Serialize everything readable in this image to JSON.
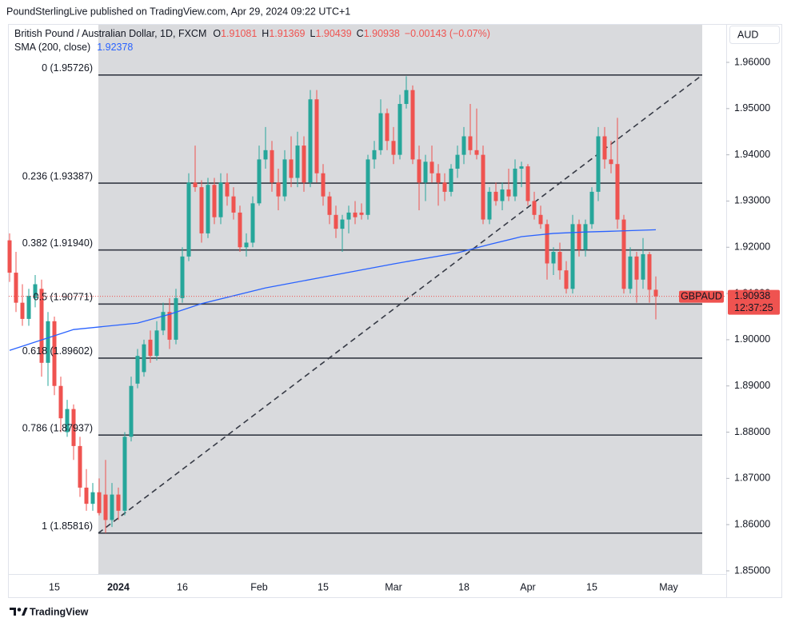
{
  "header": "PoundSterlingLive published on TradingView.com, Apr 29, 2024 09:22 UTC+1",
  "footer": "TradingView",
  "currency_button": "AUD",
  "chart_data": {
    "type": "candlestick",
    "legend": {
      "symbol": "British Pound / Australian Dollar, 1D, FXCM",
      "o": "O",
      "h": "H",
      "l": "L",
      "c": "C",
      "change": "−0.00143 (−0.07%)",
      "sma": "SMA (200, close)"
    },
    "ticker": "GBPAUD",
    "countdown": "12:37:25",
    "up_color": "#26a69a",
    "down_color": "#ef5350",
    "categories": [
      null,
      null,
      null,
      null,
      null,
      null,
      null,
      "15",
      null,
      null,
      null,
      null,
      null,
      null,
      null,
      null,
      null,
      "2024",
      null,
      null,
      null,
      null,
      null,
      null,
      null,
      null,
      null,
      "16",
      null,
      null,
      null,
      null,
      null,
      null,
      null,
      null,
      null,
      null,
      null,
      "Feb",
      null,
      null,
      null,
      null,
      null,
      null,
      null,
      null,
      null,
      "15",
      null,
      null,
      null,
      null,
      null,
      null,
      null,
      null,
      null,
      null,
      "Mar",
      null,
      null,
      null,
      null,
      null,
      null,
      null,
      null,
      null,
      null,
      "18",
      null,
      null,
      null,
      null,
      null,
      null,
      null,
      null,
      null,
      "Apr",
      null,
      null,
      null,
      null,
      null,
      null,
      null,
      null,
      null,
      "15",
      null,
      null,
      null,
      null,
      null,
      null,
      null,
      null,
      null,
      null,
      null,
      "May"
    ],
    "open": [
      1.9215,
      1.9145,
      1.908,
      1.9045,
      1.909,
      1.911,
      1.895,
      1.904,
      1.89,
      1.88,
      1.885,
      1.877,
      1.868,
      1.8645,
      1.867,
      1.8665,
      1.861,
      1.8665,
      1.863,
      1.879,
      1.8905,
      1.893,
      1.9,
      1.8965,
      1.902,
      1.906,
      1.9,
      1.909,
      1.918,
      1.934,
      1.933,
      1.923,
      1.9335,
      1.9265,
      1.934,
      1.931,
      1.9275,
      1.92,
      1.921,
      1.9295,
      1.939,
      1.941,
      1.934,
      1.931,
      1.939,
      1.935,
      1.942,
      1.934,
      1.952,
      1.936,
      1.931,
      1.927,
      1.924,
      1.926,
      1.9275,
      1.9275,
      1.927,
      1.939,
      1.941,
      1.949,
      1.943,
      1.94,
      1.951,
      1.954,
      1.939,
      1.934,
      1.9385,
      1.936,
      1.934,
      1.932,
      1.937,
      1.94,
      1.944,
      1.941,
      1.94,
      1.926,
      1.932,
      1.93,
      1.9325,
      1.931,
      1.937,
      1.9375,
      1.93,
      1.927,
      1.925,
      1.9165,
      1.919,
      1.915,
      1.911,
      1.925,
      1.9195,
      1.925,
      1.932,
      1.944,
      1.939,
      1.938,
      1.926,
      1.911,
      1.918,
      1.913,
      1.9185,
      1.91081,
      null,
      null
    ],
    "high": [
      1.923,
      1.919,
      1.912,
      1.911,
      1.914,
      1.913,
      1.906,
      1.905,
      1.892,
      1.887,
      1.886,
      1.879,
      1.872,
      1.869,
      1.87,
      1.874,
      1.869,
      1.868,
      1.88,
      1.892,
      1.898,
      1.9,
      1.902,
      1.904,
      1.908,
      1.909,
      1.911,
      1.92,
      1.936,
      1.942,
      1.9345,
      1.935,
      1.935,
      1.936,
      1.936,
      1.933,
      1.929,
      1.923,
      1.931,
      1.942,
      1.946,
      1.943,
      1.937,
      1.941,
      1.944,
      1.945,
      1.944,
      1.954,
      1.954,
      1.938,
      1.932,
      1.929,
      1.927,
      1.929,
      1.93,
      1.9295,
      1.94,
      1.943,
      1.952,
      1.95,
      1.946,
      1.953,
      1.957,
      1.955,
      1.942,
      1.94,
      1.942,
      1.938,
      1.936,
      1.938,
      1.942,
      1.946,
      1.951,
      1.95,
      1.942,
      1.933,
      1.934,
      1.934,
      1.937,
      1.939,
      1.9385,
      1.938,
      1.932,
      1.929,
      1.926,
      1.92,
      1.921,
      1.917,
      1.927,
      1.926,
      1.926,
      1.933,
      1.946,
      1.946,
      1.943,
      1.948,
      1.927,
      1.92,
      1.919,
      1.922,
      1.919,
      1.91369,
      null,
      null
    ],
    "low": [
      1.9125,
      1.906,
      1.903,
      1.903,
      1.907,
      1.892,
      1.89,
      1.888,
      1.88,
      1.879,
      1.874,
      1.866,
      1.863,
      1.863,
      1.862,
      1.8582,
      1.8595,
      1.861,
      1.862,
      1.878,
      1.8895,
      1.892,
      1.895,
      1.8955,
      1.901,
      1.898,
      1.899,
      1.908,
      1.917,
      1.932,
      1.921,
      1.922,
      1.925,
      1.925,
      1.929,
      1.926,
      1.919,
      1.918,
      1.92,
      1.929,
      1.937,
      1.932,
      1.928,
      1.93,
      1.933,
      1.933,
      1.932,
      1.933,
      1.934,
      1.929,
      1.925,
      1.922,
      1.919,
      1.923,
      1.925,
      1.926,
      1.926,
      1.937,
      1.94,
      1.941,
      1.938,
      1.939,
      1.95,
      1.938,
      1.928,
      1.93,
      1.934,
      1.929,
      1.93,
      1.931,
      1.935,
      1.938,
      1.94,
      1.939,
      1.925,
      1.925,
      1.929,
      1.928,
      1.93,
      1.93,
      1.933,
      1.929,
      1.926,
      1.924,
      1.913,
      1.914,
      1.913,
      1.91,
      1.91,
      1.918,
      1.918,
      1.924,
      1.93,
      1.937,
      1.936,
      1.924,
      1.91,
      1.91,
      1.908,
      1.911,
      1.908,
      1.90439,
      null,
      null
    ],
    "close": [
      1.9145,
      1.908,
      1.9045,
      1.9095,
      1.912,
      1.895,
      1.904,
      1.89,
      1.883,
      1.885,
      1.877,
      1.868,
      1.8645,
      1.867,
      1.8625,
      1.861,
      1.8665,
      1.863,
      1.879,
      1.89,
      1.8965,
      1.899,
      1.8965,
      1.902,
      1.906,
      1.9,
      1.909,
      1.918,
      1.934,
      1.933,
      1.923,
      1.9335,
      1.9265,
      1.934,
      1.931,
      1.9275,
      1.92,
      1.921,
      1.9295,
      1.939,
      1.941,
      1.934,
      1.931,
      1.939,
      1.935,
      1.942,
      1.934,
      1.952,
      1.936,
      1.931,
      1.927,
      1.924,
      1.926,
      1.9275,
      1.9265,
      1.927,
      1.939,
      1.941,
      1.949,
      1.943,
      1.94,
      1.951,
      1.954,
      1.939,
      1.934,
      1.9385,
      1.936,
      1.934,
      1.932,
      1.937,
      1.94,
      1.944,
      1.941,
      1.94,
      1.926,
      1.932,
      1.93,
      1.9325,
      1.931,
      1.937,
      1.9375,
      1.93,
      1.927,
      1.925,
      1.9165,
      1.919,
      1.915,
      1.911,
      1.925,
      1.9195,
      1.925,
      1.932,
      1.944,
      1.939,
      1.938,
      1.926,
      1.911,
      1.918,
      1.913,
      1.9185,
      1.91081,
      1.90938,
      null,
      null
    ],
    "sma": {
      "name": "SMA (200, close)",
      "color": "#2962ff",
      "x": [
        0,
        10,
        20,
        25,
        30,
        40,
        50,
        60,
        70,
        75,
        80,
        85,
        90,
        95,
        101
      ],
      "values": [
        1.8977,
        1.9022,
        1.9036,
        1.9055,
        1.9078,
        1.9112,
        1.9138,
        1.9164,
        1.9188,
        1.9206,
        1.9223,
        1.923,
        1.9233,
        1.9235,
        1.92378
      ]
    },
    "fib_levels": [
      {
        "label": "0 (1.95726)",
        "value": 1.95726
      },
      {
        "label": "0.236 (1.93387)",
        "value": 1.93387
      },
      {
        "label": "0.382 (1.91940)",
        "value": 1.9194
      },
      {
        "label": "0.5 (1.90771)",
        "value": 1.90771
      },
      {
        "label": "0.618 (1.89602)",
        "value": 1.89602
      },
      {
        "label": "0.786 (1.87937)",
        "value": 1.87937
      },
      {
        "label": "1 (1.85816)",
        "value": 1.85816
      }
    ],
    "fib_x": [
      13.875,
      108.25
    ],
    "trend_line": {
      "x": [
        13.875,
        108.25
      ],
      "y": [
        1.85816,
        1.95726
      ]
    },
    "ylim": [
      1.85,
      1.9683
    ],
    "yticks": [
      {
        "value": 1.85,
        "label": "1.85000"
      },
      {
        "value": 1.86,
        "label": "1.86000"
      },
      {
        "value": 1.87,
        "label": "1.87000"
      },
      {
        "value": 1.88,
        "label": "1.88000"
      },
      {
        "value": 1.89,
        "label": "1.89000"
      },
      {
        "value": 1.9,
        "label": "1.90000"
      },
      {
        "value": 1.91,
        "label": "1.91000"
      },
      {
        "value": 1.92,
        "label": "1.92000"
      },
      {
        "value": 1.93,
        "label": "1.93000"
      },
      {
        "value": 1.94,
        "label": "1.94000"
      },
      {
        "value": 1.95,
        "label": "1.95000"
      },
      {
        "value": 1.96,
        "label": "1.96000"
      }
    ]
  }
}
